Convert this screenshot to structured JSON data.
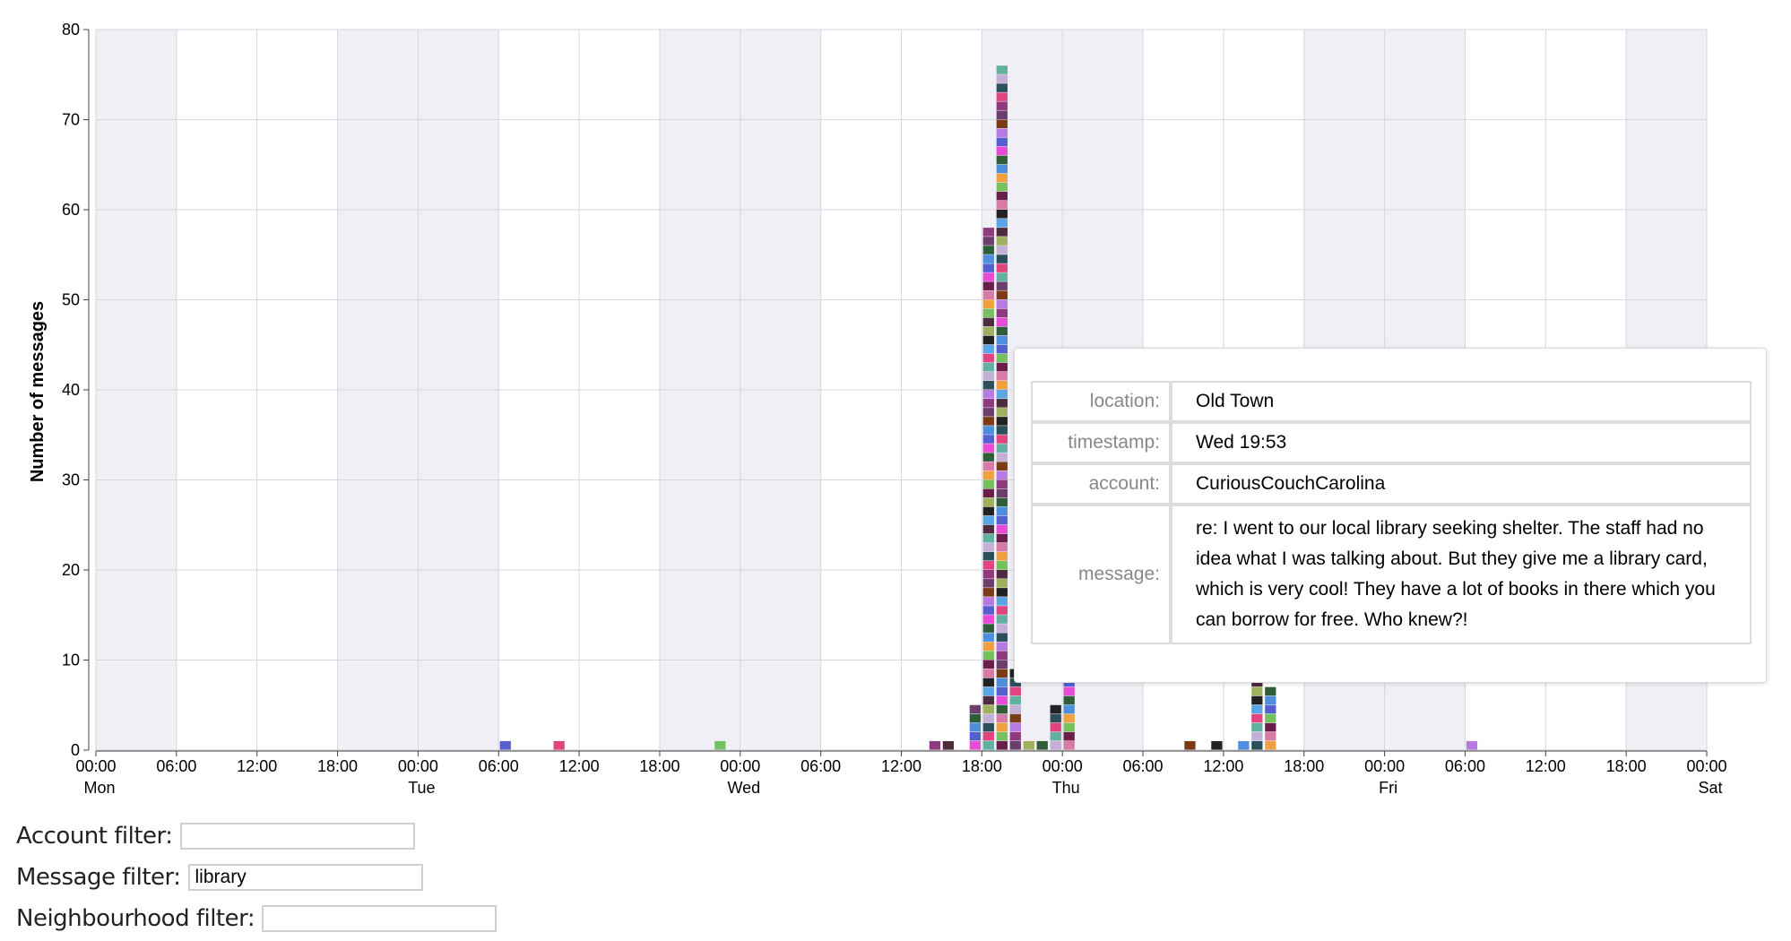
{
  "chart_data": {
    "type": "bar",
    "stacked": true,
    "ylabel": "Number of messages",
    "ylim": [
      0,
      80
    ],
    "y_ticks": [
      0,
      10,
      20,
      30,
      40,
      50,
      60,
      70,
      80
    ],
    "x_ticks": [
      {
        "time": "00:00",
        "day": "Mon"
      },
      {
        "time": "06:00",
        "day": ""
      },
      {
        "time": "12:00",
        "day": ""
      },
      {
        "time": "18:00",
        "day": ""
      },
      {
        "time": "00:00",
        "day": "Tue"
      },
      {
        "time": "06:00",
        "day": ""
      },
      {
        "time": "12:00",
        "day": ""
      },
      {
        "time": "18:00",
        "day": ""
      },
      {
        "time": "00:00",
        "day": "Wed"
      },
      {
        "time": "06:00",
        "day": ""
      },
      {
        "time": "12:00",
        "day": ""
      },
      {
        "time": "18:00",
        "day": ""
      },
      {
        "time": "00:00",
        "day": "Thu"
      },
      {
        "time": "06:00",
        "day": ""
      },
      {
        "time": "12:00",
        "day": ""
      },
      {
        "time": "18:00",
        "day": ""
      },
      {
        "time": "00:00",
        "day": "Fri"
      },
      {
        "time": "06:00",
        "day": ""
      },
      {
        "time": "12:00",
        "day": ""
      },
      {
        "time": "18:00",
        "day": ""
      },
      {
        "time": "00:00",
        "day": "Sat"
      }
    ],
    "grid": true,
    "shaded_bands": "alternating 12-hour bands (00:00-06:00 and 18:00-24:00 shaded)",
    "bars": [
      {
        "hour": 30.5,
        "value": 1
      },
      {
        "hour": 34.5,
        "value": 1
      },
      {
        "hour": 46.5,
        "value": 1
      },
      {
        "hour": 62.5,
        "value": 1
      },
      {
        "hour": 63.5,
        "value": 1
      },
      {
        "hour": 65.5,
        "value": 5
      },
      {
        "hour": 66.5,
        "value": 58
      },
      {
        "hour": 67.5,
        "value": 76
      },
      {
        "hour": 68.5,
        "value": 9
      },
      {
        "hour": 69.5,
        "value": 1
      },
      {
        "hour": 70.5,
        "value": 1
      },
      {
        "hour": 71.5,
        "value": 5
      },
      {
        "hour": 72.5,
        "value": 8
      },
      {
        "hour": 81.5,
        "value": 1
      },
      {
        "hour": 83.5,
        "value": 1
      },
      {
        "hour": 85.5,
        "value": 1
      },
      {
        "hour": 86.5,
        "value": 12
      },
      {
        "hour": 87.5,
        "value": 7
      },
      {
        "hour": 102.5,
        "value": 1
      }
    ]
  },
  "tooltip": {
    "rows": [
      {
        "key": "location:",
        "value": "Old Town"
      },
      {
        "key": "timestamp:",
        "value": "Wed 19:53"
      },
      {
        "key": "account:",
        "value": "CuriousCouchCarolina"
      },
      {
        "key": "message:",
        "value": "re: I went to our local library seeking shelter. The staff had no idea what I was talking about. But they give me a library card, which is very cool! They have a lot of books in there which you can borrow for free. Who knew?!"
      }
    ]
  },
  "filters": {
    "account": {
      "label": "Account filter:",
      "value": ""
    },
    "message": {
      "label": "Message filter:",
      "value": "library"
    },
    "neighbourhood": {
      "label": "Neighbourhood filter:",
      "value": ""
    }
  }
}
